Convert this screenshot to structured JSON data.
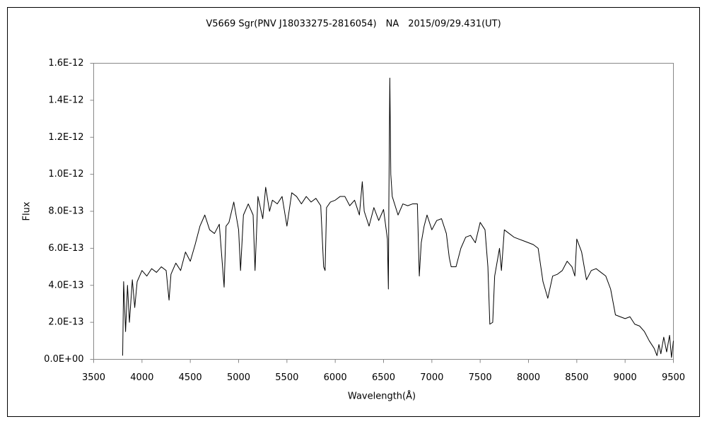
{
  "chart_data": {
    "type": "line",
    "title": "V5669 Sgr(PNV J18033275-2816054)　NA　2015/09/29.431(UT)",
    "x_label": "Wavelength(Å)",
    "y_label": "Flux",
    "xlim": [
      3500,
      9500
    ],
    "xticks": [
      3500,
      4000,
      4500,
      5000,
      5500,
      6000,
      6500,
      7000,
      7500,
      8000,
      8500,
      9000,
      9500
    ],
    "ylim": [
      0,
      1.6e-12
    ],
    "yticks": [
      {
        "value": 0,
        "label": "0.0E+00"
      },
      {
        "value": 2e-13,
        "label": "2.0E-13"
      },
      {
        "value": 4e-13,
        "label": "4.0E-13"
      },
      {
        "value": 6e-13,
        "label": "6.0E-13"
      },
      {
        "value": 8e-13,
        "label": "8.0E-13"
      },
      {
        "value": 1e-12,
        "label": "1.0E-12"
      },
      {
        "value": 1.2e-12,
        "label": "1.2E-12"
      },
      {
        "value": 1.4e-12,
        "label": "1.4E-12"
      },
      {
        "value": 1.6e-12,
        "label": "1.6E-12"
      }
    ],
    "grid": false,
    "color": "#000000",
    "x": [
      3800,
      3810,
      3830,
      3850,
      3870,
      3900,
      3925,
      3950,
      3975,
      4000,
      4050,
      4100,
      4150,
      4200,
      4250,
      4280,
      4300,
      4350,
      4400,
      4450,
      4500,
      4550,
      4600,
      4650,
      4700,
      4750,
      4800,
      4850,
      4870,
      4900,
      4950,
      5000,
      5020,
      5050,
      5100,
      5150,
      5170,
      5200,
      5250,
      5280,
      5320,
      5350,
      5400,
      5450,
      5500,
      5550,
      5600,
      5650,
      5700,
      5750,
      5800,
      5850,
      5880,
      5895,
      5910,
      5950,
      6000,
      6050,
      6100,
      6150,
      6200,
      6250,
      6280,
      6300,
      6350,
      6400,
      6450,
      6500,
      6540,
      6550,
      6555,
      6565,
      6575,
      6590,
      6620,
      6650,
      6700,
      6750,
      6800,
      6850,
      6870,
      6890,
      6920,
      6950,
      7000,
      7050,
      7100,
      7150,
      7180,
      7200,
      7250,
      7300,
      7350,
      7400,
      7450,
      7500,
      7550,
      7580,
      7600,
      7630,
      7650,
      7700,
      7720,
      7750,
      7800,
      7850,
      7900,
      7950,
      8000,
      8050,
      8100,
      8150,
      8200,
      8250,
      8300,
      8350,
      8400,
      8450,
      8480,
      8500,
      8550,
      8600,
      8650,
      8700,
      8750,
      8800,
      8850,
      8900,
      8950,
      9000,
      9050,
      9100,
      9150,
      9200,
      9250,
      9300,
      9330,
      9350,
      9370,
      9400,
      9430,
      9460,
      9480,
      9500
    ],
    "values": [
      2e-14,
      4.2e-13,
      1.5e-13,
      4e-13,
      2e-13,
      4.3e-13,
      2.8e-13,
      4.2e-13,
      4.5e-13,
      4.8e-13,
      4.5e-13,
      4.9e-13,
      4.7e-13,
      5e-13,
      4.8e-13,
      3.2e-13,
      4.6e-13,
      5.2e-13,
      4.8e-13,
      5.8e-13,
      5.3e-13,
      6.2e-13,
      7.2e-13,
      7.8e-13,
      7e-13,
      6.8e-13,
      7.3e-13,
      3.9e-13,
      7.2e-13,
      7.4e-13,
      8.5e-13,
      7e-13,
      4.8e-13,
      7.8e-13,
      8.4e-13,
      7.8e-13,
      4.8e-13,
      8.8e-13,
      7.6e-13,
      9.3e-13,
      8e-13,
      8.6e-13,
      8.4e-13,
      8.8e-13,
      7.2e-13,
      9e-13,
      8.8e-13,
      8.4e-13,
      8.8e-13,
      8.5e-13,
      8.7e-13,
      8.3e-13,
      5e-13,
      4.8e-13,
      8.2e-13,
      8.5e-13,
      8.6e-13,
      8.8e-13,
      8.8e-13,
      8.3e-13,
      8.6e-13,
      7.8e-13,
      9.6e-13,
      8e-13,
      7.2e-13,
      8.2e-13,
      7.5e-13,
      8.1e-13,
      6.5e-13,
      3.8e-13,
      8.5e-13,
      1.52e-12,
      1e-12,
      8.8e-13,
      8.3e-13,
      7.8e-13,
      8.4e-13,
      8.3e-13,
      8.4e-13,
      8.4e-13,
      4.5e-13,
      6.3e-13,
      7.2e-13,
      7.8e-13,
      7e-13,
      7.5e-13,
      7.6e-13,
      6.8e-13,
      5.5e-13,
      5e-13,
      5e-13,
      6e-13,
      6.6e-13,
      6.7e-13,
      6.3e-13,
      7.4e-13,
      7e-13,
      5e-13,
      1.9e-13,
      2e-13,
      4.5e-13,
      6e-13,
      4.8e-13,
      7e-13,
      6.8e-13,
      6.6e-13,
      6.5e-13,
      6.4e-13,
      6.3e-13,
      6.2e-13,
      6e-13,
      4.2e-13,
      3.3e-13,
      4.5e-13,
      4.6e-13,
      4.8e-13,
      5.3e-13,
      5e-13,
      4.5e-13,
      6.5e-13,
      5.8e-13,
      4.3e-13,
      4.8e-13,
      4.9e-13,
      4.7e-13,
      4.5e-13,
      3.8e-13,
      2.4e-13,
      2.3e-13,
      2.2e-13,
      2.3e-13,
      1.9e-13,
      1.8e-13,
      1.5e-13,
      1e-13,
      6e-14,
      2e-14,
      8e-14,
      3e-14,
      1.2e-13,
      4e-14,
      1.3e-13,
      1e-14,
      1e-13
    ]
  }
}
